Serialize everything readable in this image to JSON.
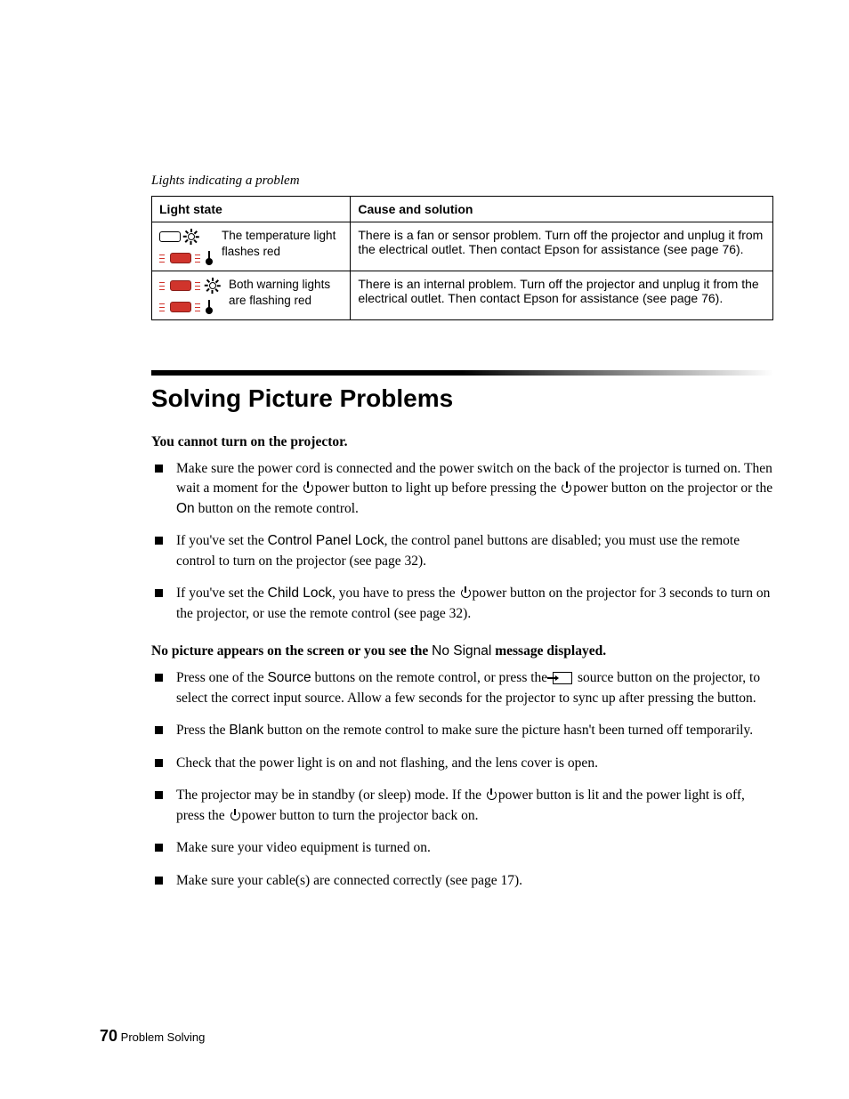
{
  "caption": "Lights indicating a problem",
  "table": {
    "headers": [
      "Light state",
      "Cause and solution"
    ],
    "rows": [
      {
        "state_text": "The temperature light flashes red",
        "top_led_color": "off",
        "bottom_led_color": "red",
        "solution": "There is a fan or sensor problem. Turn off the projector and unplug it from the electrical outlet. Then contact Epson for assistance (see page 76)."
      },
      {
        "state_text": "Both warning lights are flashing red",
        "top_led_color": "red",
        "bottom_led_color": "red",
        "solution": "There is an internal problem. Turn off the projector and unplug it from the electrical outlet. Then contact Epson for assistance (see page 76)."
      }
    ]
  },
  "section_title": "Solving Picture Problems",
  "sub1": {
    "heading": "You cannot turn on the projector.",
    "items": [
      {
        "pre": "Make sure the power cord is connected and the power switch on the back of the projector is turned on. Then wait a moment for the ",
        "icon1": "power",
        "mid1": "power button to light up before pressing the ",
        "icon2": "power",
        "mid2": "power button on the projector or the ",
        "sans1": "On",
        "post": " button on the remote control."
      },
      {
        "pre": "If you've set the ",
        "sans1": "Control Panel Lock",
        "post": ", the control panel buttons are disabled; you must use the remote control to turn on the projector (see page 32)."
      },
      {
        "pre": "If you've set the ",
        "sans1": "Child Lock",
        "mid1": ", you have to press the ",
        "icon1": "power",
        "post": "power button on the projector for 3 seconds to turn on the projector, or use the remote control (see page 32)."
      }
    ]
  },
  "sub2": {
    "heading_pre": "No picture appears on the screen or you see the ",
    "heading_sans": "No Signal",
    "heading_post": " message displayed.",
    "items": [
      {
        "pre": "Press one of the ",
        "sans1": "Source",
        "mid1": " buttons on the remote control, or press the ",
        "icon1": "source",
        "post": " source button on the projector, to select the correct input source. Allow a few seconds for the projector to sync up after pressing the button."
      },
      {
        "pre": "Press the ",
        "sans1": "Blank",
        "post": " button on the remote control to make sure the picture hasn't been turned off temporarily."
      },
      {
        "pre": "Check that the power light is on and not flashing, and the lens cover is open."
      },
      {
        "pre": "The projector may be in standby (or sleep) mode. If the ",
        "icon1": "power",
        "mid1": "power button is lit and the  power light is off, press the ",
        "icon2": "power",
        "post": "power button to turn the projector back on."
      },
      {
        "pre": "Make sure your video equipment is turned on."
      },
      {
        "pre": "Make sure your cable(s) are connected correctly (see page 17)."
      }
    ]
  },
  "footer": {
    "page_num": "70",
    "label": "Problem Solving"
  },
  "colors": {
    "red": "#d0342c",
    "black": "#000000",
    "background": "#ffffff"
  },
  "typography": {
    "body_font": "Georgia, Times New Roman, serif",
    "ui_font": "Arial, Helvetica, sans-serif",
    "body_size_pt": 12,
    "heading_size_pt": 21,
    "caption_size_pt": 11
  }
}
